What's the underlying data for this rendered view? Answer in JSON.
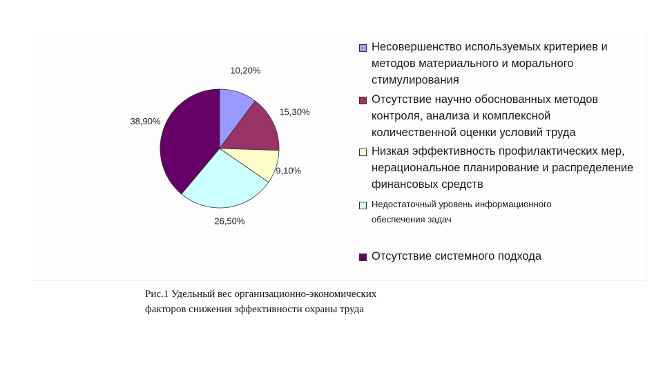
{
  "chart_data": {
    "type": "pie",
    "categories": [
      "Несовершенство используемых критериев и методов материального и морального стимулирования",
      "Отсутствие научно обоснованных методов контроля, анализа и комплексной количественной оценки условий труда",
      "Низкая эффективность профилактических мер, нерациональное планирование и распределение финансовых средств",
      "Недостаточный уровень информационного обеспечения задач",
      "Отсутствие системного подхода"
    ],
    "values": [
      10.2,
      15.3,
      9.1,
      26.5,
      38.9
    ],
    "data_labels": [
      "10,20%",
      "15,30%",
      "9,10%",
      "26,50%",
      "38,90%"
    ],
    "colors": [
      "#9999ff",
      "#993366",
      "#ffffcc",
      "#ccffff",
      "#660066"
    ],
    "legend_position": "right"
  },
  "legend": {
    "items": [
      "Несовершенство используемых критериев и методов материального и морального стимулирования",
      "Отсутствие научно обоснованных методов контроля, анализа и комплексной количественной оценки условий труда",
      "Низкая эффективность профилактических мер, нерациональное планирование и распределение финансовых средств",
      "Недостаточный уровень информационного обеспечения задач",
      "Отсутствие системного подхода"
    ]
  },
  "caption": {
    "line1": "Рис.1 Удельный вес организационно-экономических",
    "line2": "факторов снижения эффективности охраны труда"
  }
}
